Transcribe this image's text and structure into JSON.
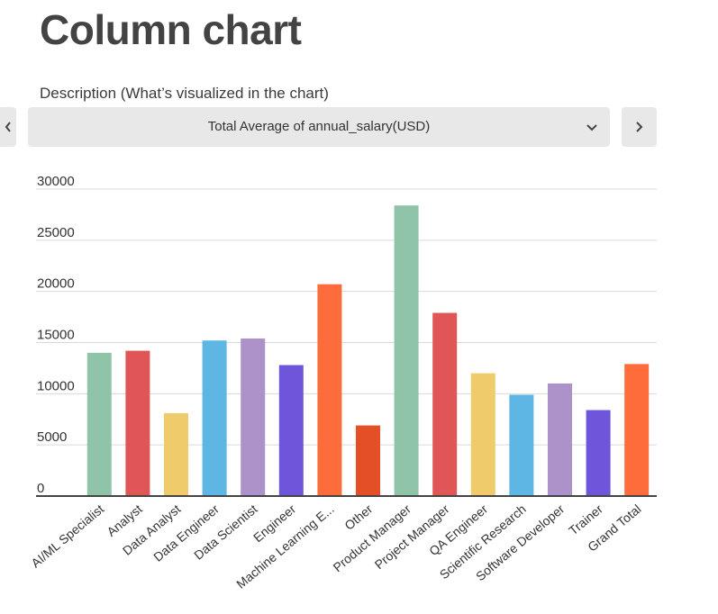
{
  "header": {
    "title": "Column chart",
    "description_label": "Description (What’s visualized in the chart)"
  },
  "selector": {
    "value": "Total Average of annual_salary(USD)",
    "prev_icon": "chevron-left-icon",
    "next_icon": "chevron-right-icon",
    "dropdown_icon": "chevron-down-icon"
  },
  "chart_data": {
    "type": "bar",
    "title": "",
    "xlabel": "",
    "ylabel": "",
    "ylim": [
      0,
      30000
    ],
    "yticks": [
      0,
      5000,
      10000,
      15000,
      20000,
      25000,
      30000
    ],
    "grid": true,
    "categories": [
      "AI/ML Specialist",
      "Analyst",
      "Data Analyst",
      "Data Engineer",
      "Data Scientist",
      "Engineer",
      "Machine Learning E...",
      "Other",
      "Product Manager",
      "Project Manager",
      "QA Engineer",
      "Scientific Research",
      "Software Developer",
      "Trainer",
      "Grand Total"
    ],
    "values": [
      14000,
      14200,
      8100,
      15200,
      15400,
      12800,
      20700,
      6900,
      28400,
      17900,
      12000,
      9900,
      11000,
      8400,
      12900
    ],
    "colors": [
      "#8fc4a9",
      "#e05656",
      "#f0cb6b",
      "#5eb6e4",
      "#ad92c9",
      "#6f55da",
      "#fd6c3a",
      "#e54f27",
      "#8fc4a9",
      "#e05656",
      "#f0cb6b",
      "#5eb6e4",
      "#ad92c9",
      "#6f55da",
      "#fd6c3a"
    ]
  }
}
